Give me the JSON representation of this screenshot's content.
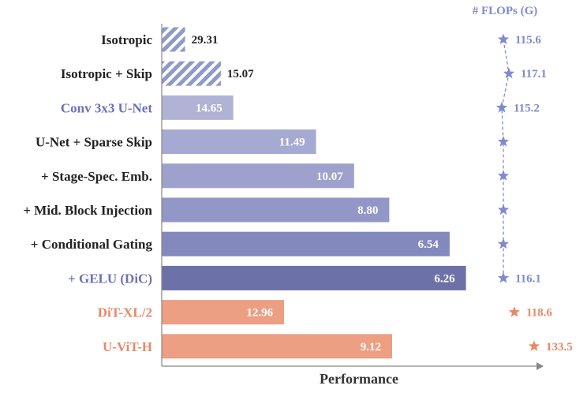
{
  "chart_data": {
    "type": "bar",
    "orientation": "horizontal",
    "xlabel": "Performance",
    "flops_header": "# FLOPs (G)",
    "grid": false,
    "categories": [
      "Isotropic",
      "Isotropic + Skip",
      "Conv 3x3 U-Net",
      "U-Net + Sparse Skip",
      "+ Stage-Spec. Emb.",
      "+ Mid. Block Injection",
      "+ Conditional Gating",
      "+ GELU (DiC)",
      "DiT-XL/2",
      "U-ViT-H"
    ],
    "values": [
      29.31,
      15.07,
      14.65,
      11.49,
      10.07,
      8.8,
      6.54,
      6.26,
      12.96,
      9.12
    ],
    "value_labels": [
      "29.31",
      "15.07",
      "14.65",
      "11.49",
      "10.07",
      "8.80",
      "6.54",
      "6.26",
      "12.96",
      "9.12"
    ],
    "performance_fraction": [
      0.073,
      0.185,
      0.224,
      0.483,
      0.602,
      0.712,
      0.901,
      0.952,
      0.383,
      0.721
    ],
    "bar_styles": [
      "hatched",
      "hatched",
      "solid",
      "solid",
      "solid",
      "solid",
      "solid",
      "solid",
      "solid",
      "solid"
    ],
    "bar_colors": [
      "#8f9ac9",
      "#8f9ac9",
      "#b0b3d6",
      "#a6a9d1",
      "#9da1cc",
      "#9297c7",
      "#8388bd",
      "#6c72a8",
      "#ec9f83",
      "#ec9f83"
    ],
    "label_colors": [
      "#222222",
      "#222222",
      "#6d71b5",
      "#222222",
      "#222222",
      "#222222",
      "#222222",
      "#6d71b5",
      "#e8886a",
      "#e8886a"
    ],
    "flops": [
      "115.6",
      "117.1",
      "115.2",
      "",
      "",
      "",
      "",
      "116.1",
      "118.6",
      "133.5"
    ],
    "flops_colors": [
      "#7f8bcc",
      "#7f8bcc",
      "#7f8bcc",
      "#7f8bcc",
      "#7f8bcc",
      "#7f8bcc",
      "#7f8bcc",
      "#7f8bcc",
      "#e8886a",
      "#e8886a"
    ],
    "flops_connected_groups": [
      [
        0,
        7
      ]
    ]
  }
}
